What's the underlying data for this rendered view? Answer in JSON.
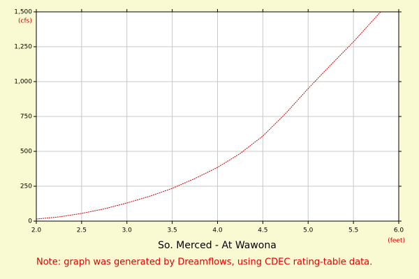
{
  "chart_data": {
    "type": "line",
    "title": "So. Merced - At Wawona",
    "y_unit": "(cfs)",
    "x_unit": "(feet)",
    "note": "Note: graph was generated by Dreamflows, using CDEC rating-table data.",
    "x": [
      2.0,
      2.25,
      2.5,
      2.75,
      3.0,
      3.25,
      3.5,
      3.75,
      4.0,
      4.25,
      4.5,
      4.75,
      5.0,
      5.25,
      5.5,
      5.8
    ],
    "series": [
      {
        "color": "#cc0000",
        "values": [
          15,
          30,
          55,
          88,
          130,
          178,
          235,
          305,
          385,
          485,
          610,
          770,
          950,
          1120,
          1285,
          1500
        ]
      }
    ],
    "xlim": [
      2.0,
      6.0
    ],
    "xticks": [
      {
        "value": 2,
        "label": "2.0"
      },
      2.5,
      {
        "value": 3,
        "label": "3.0"
      },
      3.5,
      {
        "value": 4,
        "label": "4.0"
      },
      4.5,
      {
        "value": 5,
        "label": "5.0"
      },
      5.5,
      {
        "value": 6,
        "label": "6.0"
      }
    ],
    "ylim": [
      0,
      1500
    ],
    "yticks": [
      0,
      250,
      500,
      750,
      {
        "value": 1000,
        "label": "1,000"
      },
      {
        "value": 1250,
        "label": "1,250"
      },
      {
        "value": 1500,
        "label": "1,500"
      }
    ],
    "grid": true
  }
}
